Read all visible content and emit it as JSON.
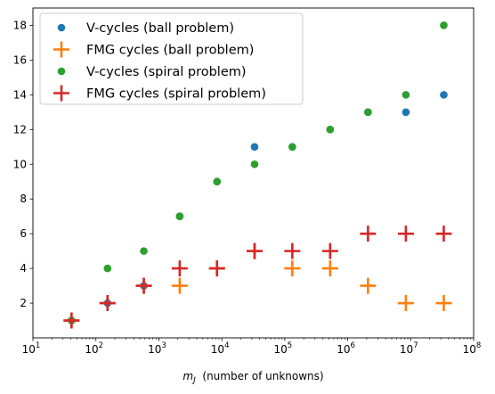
{
  "chart_data": {
    "type": "scatter",
    "xscale": "log",
    "xlim": [
      10,
      100000000
    ],
    "ylim": [
      0,
      19
    ],
    "grid": false,
    "legend_position": "top-left",
    "xlabel_main": "m",
    "xlabel_sub": "J",
    "xlabel_rest": "  (number of unknowns)",
    "x_tick_values": [
      10,
      100,
      1000,
      10000,
      100000,
      1000000,
      10000000,
      100000000
    ],
    "x_tick_labels": [
      {
        "base": "10",
        "exp": "1"
      },
      {
        "base": "10",
        "exp": "2"
      },
      {
        "base": "10",
        "exp": "3"
      },
      {
        "base": "10",
        "exp": "4"
      },
      {
        "base": "10",
        "exp": "5"
      },
      {
        "base": "10",
        "exp": "6"
      },
      {
        "base": "10",
        "exp": "7"
      },
      {
        "base": "10",
        "exp": "8"
      }
    ],
    "y_ticks": [
      2,
      4,
      6,
      8,
      10,
      12,
      14,
      16,
      18
    ],
    "y_tick_labels": [
      "2",
      "4",
      "6",
      "8",
      "10",
      "12",
      "14",
      "16",
      "18"
    ],
    "x": [
      41,
      153,
      577,
      2145,
      8385,
      33153,
      131841,
      525825,
      2100225,
      8394753,
      33566721
    ],
    "series": [
      {
        "name": "V-cycles (ball problem)",
        "marker": "circle",
        "color": "#1f77b4",
        "values": [
          1,
          2,
          3,
          7,
          9,
          11,
          11,
          12,
          13,
          13,
          14
        ]
      },
      {
        "name": "FMG cycles (ball problem)",
        "marker": "plus",
        "color": "#ff7f0e",
        "values": [
          1,
          2,
          3,
          3,
          4,
          5,
          4,
          4,
          3,
          2,
          2
        ]
      },
      {
        "name": "V-cycles (spiral problem)",
        "marker": "circle",
        "color": "#2ca02c",
        "values": [
          1,
          4,
          5,
          7,
          9,
          10,
          11,
          12,
          13,
          14,
          18
        ]
      },
      {
        "name": "FMG cycles (spiral problem)",
        "marker": "plus",
        "color": "#d62728",
        "values": [
          1,
          2,
          3,
          4,
          4,
          5,
          5,
          5,
          6,
          6,
          6
        ]
      }
    ]
  }
}
